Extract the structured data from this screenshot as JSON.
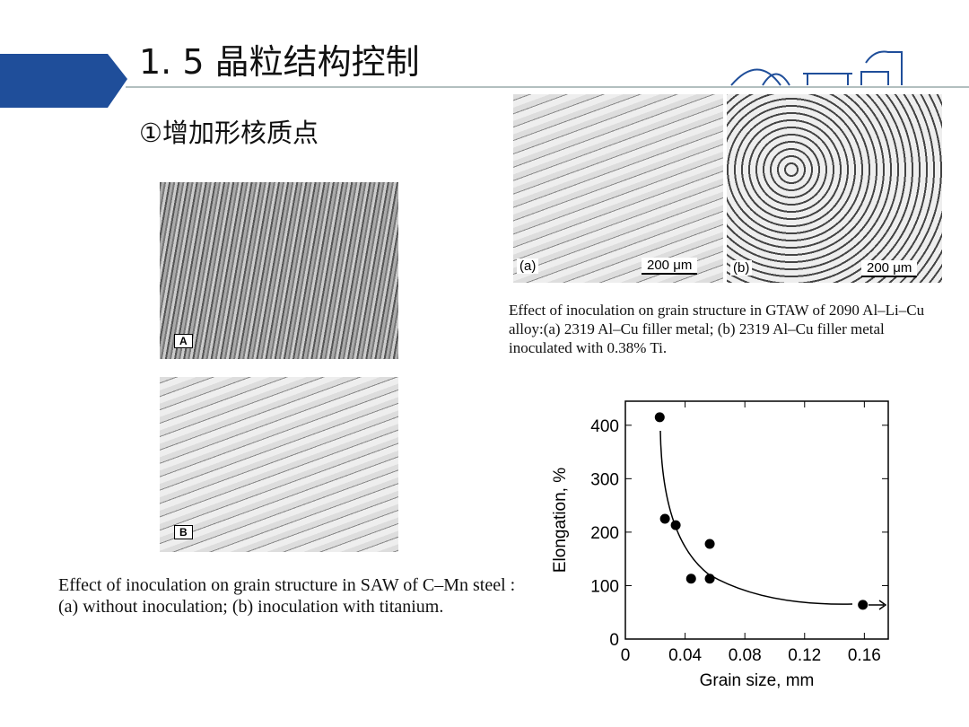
{
  "header": {
    "title": "1. 5 晶粒结构控制",
    "subtitle": "①增加形核质点"
  },
  "figures": [
    {
      "panels": [
        "A",
        "B"
      ],
      "caption": "Effect of inoculation on grain structure in SAW of C–Mn steel : (a) without inoculation; (b) inoculation with titanium."
    },
    {
      "panels": [
        "(a)",
        "(b)"
      ],
      "scale_bars": [
        "200 μm",
        "200 μm"
      ],
      "caption": "Effect of inoculation on grain structure in GTAW of 2090 Al–Li–Cu alloy:(a) 2319 Al–Cu filler metal; (b) 2319 Al–Cu filler metal inoculated with 0.38% Ti."
    }
  ],
  "chart_data": {
    "type": "scatter",
    "x_label": "Grain size, mm",
    "y_label": "Elongation, %",
    "x": [
      0.023,
      0.0265,
      0.0337,
      0.044,
      0.0565,
      0.0565,
      0.159
    ],
    "y": [
      415,
      225,
      213,
      113,
      178,
      113,
      64
    ],
    "color": "#000000",
    "xlim": [
      0,
      0.176
    ],
    "ylim": [
      0,
      445
    ],
    "xticks": [
      0,
      0.04,
      0.08,
      0.12,
      0.16
    ],
    "yticks": [
      0,
      100,
      200,
      300,
      400
    ]
  }
}
